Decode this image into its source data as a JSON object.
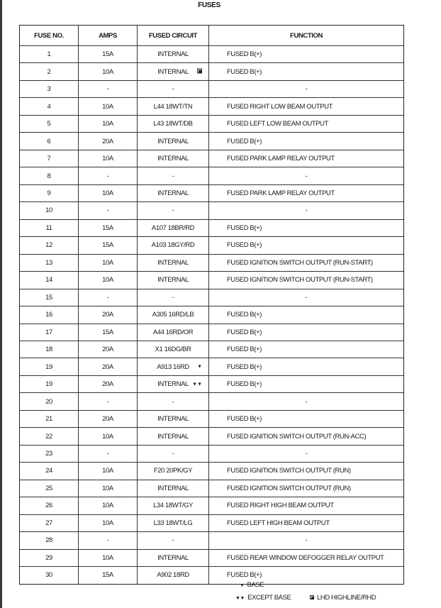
{
  "title": "FUSES",
  "headers": {
    "fuse_no": "FUSE NO.",
    "amps": "AMPS",
    "circuit": "FUSED CIRCUIT",
    "function": "FUNCTION"
  },
  "rows": [
    {
      "no": "1",
      "amps": "15A",
      "circuit": "INTERNAL",
      "function": "FUSED B(+)",
      "marker": ""
    },
    {
      "no": "2",
      "amps": "10A",
      "circuit": "INTERNAL",
      "function": "FUSED B(+)",
      "marker": "square"
    },
    {
      "no": "3",
      "amps": "-",
      "circuit": "-",
      "function": "-",
      "marker": ""
    },
    {
      "no": "4",
      "amps": "10A",
      "circuit": "L44 18WT/TN",
      "function": "FUSED RIGHT LOW BEAM OUTPUT",
      "marker": ""
    },
    {
      "no": "5",
      "amps": "10A",
      "circuit": "L43 18WT/DB",
      "function": "FUSED LEFT LOW BEAM OUTPUT",
      "marker": ""
    },
    {
      "no": "6",
      "amps": "20A",
      "circuit": "INTERNAL",
      "function": "FUSED B(+)",
      "marker": ""
    },
    {
      "no": "7",
      "amps": "10A",
      "circuit": "INTERNAL",
      "function": "FUSED PARK LAMP RELAY OUTPUT",
      "marker": ""
    },
    {
      "no": "8",
      "amps": "-",
      "circuit": "-",
      "function": "-",
      "marker": ""
    },
    {
      "no": "9",
      "amps": "10A",
      "circuit": "INTERNAL",
      "function": "FUSED PARK LAMP RELAY OUTPUT",
      "marker": ""
    },
    {
      "no": "10",
      "amps": "-",
      "circuit": "-",
      "function": "-",
      "marker": ""
    },
    {
      "no": "11",
      "amps": "15A",
      "circuit": "A107 18BR/RD",
      "function": "FUSED B(+)",
      "marker": ""
    },
    {
      "no": "12",
      "amps": "15A",
      "circuit": "A103 18GY/RD",
      "function": "FUSED B(+)",
      "marker": ""
    },
    {
      "no": "13",
      "amps": "10A",
      "circuit": "INTERNAL",
      "function": "FUSED IGNITION SWITCH OUTPUT (RUN-START)",
      "marker": ""
    },
    {
      "no": "14",
      "amps": "10A",
      "circuit": "INTERNAL",
      "function": "FUSED IGNITION SWITCH OUTPUT (RUN-START)",
      "marker": ""
    },
    {
      "no": "15",
      "amps": "-",
      "circuit": "-",
      "function": "-",
      "marker": ""
    },
    {
      "no": "16",
      "amps": "20A",
      "circuit": "A305 16RD/LB",
      "function": "FUSED B(+)",
      "marker": ""
    },
    {
      "no": "17",
      "amps": "15A",
      "circuit": "A44 16RD/OR",
      "function": "FUSED B(+)",
      "marker": ""
    },
    {
      "no": "18",
      "amps": "20A",
      "circuit": "X1 16DG/BR",
      "function": "FUSED B(+)",
      "marker": ""
    },
    {
      "no": "19",
      "amps": "20A",
      "circuit": "A913 16RD",
      "function": "FUSED B(+)",
      "marker": "single-triangle"
    },
    {
      "no": "19",
      "amps": "20A",
      "circuit": "INTERNAL",
      "function": "FUSED B(+)",
      "marker": "double-triangle"
    },
    {
      "no": "20",
      "amps": "-",
      "circuit": "-",
      "function": "-",
      "marker": ""
    },
    {
      "no": "21",
      "amps": "20A",
      "circuit": "INTERNAL",
      "function": "FUSED B(+)",
      "marker": ""
    },
    {
      "no": "22",
      "amps": "10A",
      "circuit": "INTERNAL",
      "function": "FUSED IGNITION SWITCH OUTPUT (RUN-ACC)",
      "marker": ""
    },
    {
      "no": "23",
      "amps": "-",
      "circuit": "-",
      "function": "-",
      "marker": ""
    },
    {
      "no": "24",
      "amps": "10A",
      "circuit": "F20 20PK/GY",
      "function": "FUSED IGNITION SWITCH OUTPUT (RUN)",
      "marker": ""
    },
    {
      "no": "25",
      "amps": "10A",
      "circuit": "INTERNAL",
      "function": "FUSED IGNITION SWITCH OUTPUT (RUN)",
      "marker": ""
    },
    {
      "no": "26",
      "amps": "10A",
      "circuit": "L34 18WT/GY",
      "function": "FUSED RIGHT HIGH BEAM OUTPUT",
      "marker": ""
    },
    {
      "no": "27",
      "amps": "10A",
      "circuit": "L33 18WT/LG",
      "function": "FUSED LEFT HIGH BEAM OUTPUT",
      "marker": ""
    },
    {
      "no": "28",
      "amps": "-",
      "circuit": "-",
      "function": "-",
      "marker": ""
    },
    {
      "no": "29",
      "amps": "10A",
      "circuit": "INTERNAL",
      "function": "FUSED REAR WINDOW DEFOGGER RELAY OUTPUT",
      "marker": ""
    },
    {
      "no": "30",
      "amps": "15A",
      "circuit": "A902 18RD",
      "function": "FUSED B(+)",
      "marker": ""
    }
  ],
  "legend": {
    "base": "BASE",
    "except_base": "EXCEPT BASE",
    "lhd": "LHD HIGHLINE/RHD"
  }
}
